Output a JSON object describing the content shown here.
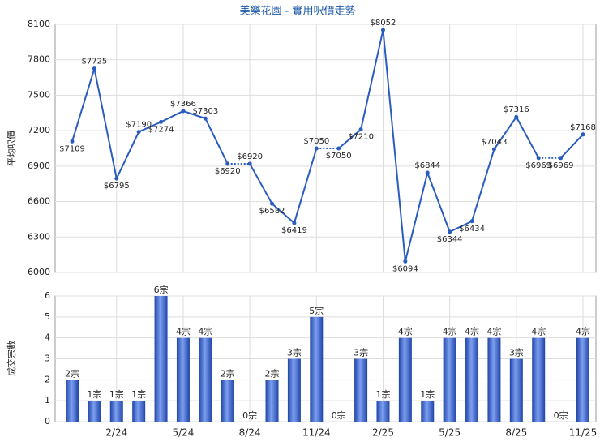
{
  "chart_data": [
    {
      "type": "line",
      "title": "美樂花園 - 實用呎價走勢",
      "y_label": "平均呎價",
      "color": "#2a5cc0",
      "values": [
        7109,
        7725,
        6795,
        7190,
        7274,
        7366,
        7303,
        6920,
        6920,
        6582,
        6419,
        7050,
        7050,
        7210,
        8052,
        6094,
        6844,
        6344,
        6434,
        7043,
        7316,
        6969,
        6969,
        7168
      ],
      "value_labels": [
        "$7109",
        "$7725",
        "$6795",
        "$7190",
        "$7274",
        "$7366",
        "$7303",
        "$6920",
        "$6920",
        "$6582",
        "$6419",
        "$7050",
        "$7050",
        "$7210",
        "$8052",
        "$6094",
        "$6844",
        "$6344",
        "$6434",
        "$7043",
        "$7316",
        "$6969",
        "$6969",
        "$7168"
      ],
      "ylim": [
        6000,
        8100
      ],
      "yticks": [
        6000,
        6300,
        6600,
        6900,
        7200,
        7500,
        7800,
        8100
      ],
      "grid": true
    },
    {
      "type": "bar",
      "y_label": "成交宗數",
      "color": "#3a64c8",
      "categories": [
        null,
        null,
        "2/24",
        null,
        null,
        "5/24",
        null,
        null,
        "8/24",
        null,
        null,
        "11/24",
        null,
        null,
        "2/25",
        null,
        null,
        "5/25",
        null,
        null,
        "8/25",
        null,
        null,
        "11/25"
      ],
      "values": [
        2,
        1,
        1,
        1,
        6,
        4,
        4,
        2,
        0,
        2,
        3,
        5,
        0,
        3,
        1,
        4,
        1,
        4,
        4,
        4,
        3,
        4,
        0,
        4
      ],
      "value_labels": [
        "2宗",
        "1宗",
        "1宗",
        "1宗",
        "6宗",
        "4宗",
        "4宗",
        "2宗",
        "0宗",
        "2宗",
        "3宗",
        "5宗",
        "0宗",
        "3宗",
        "1宗",
        "4宗",
        "1宗",
        "4宗",
        "4宗",
        "4宗",
        "3宗",
        "4宗",
        "0宗",
        "4宗"
      ],
      "ylim": [
        0,
        6
      ],
      "yticks": [
        0,
        1,
        2,
        3,
        4,
        5,
        6
      ],
      "grid": true
    }
  ]
}
